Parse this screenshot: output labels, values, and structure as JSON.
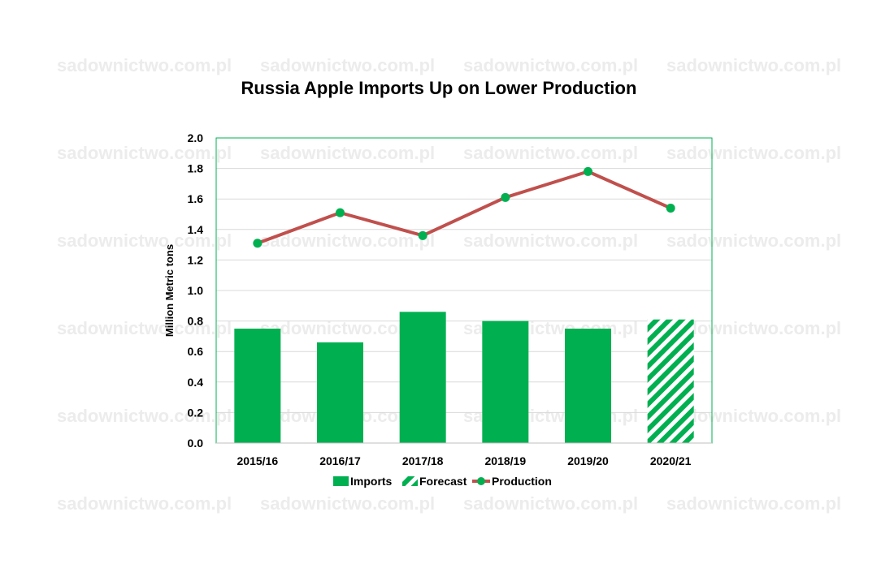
{
  "chart_data": {
    "type": "bar",
    "title": "Russia Apple Imports Up on Lower Production",
    "xlabel": "",
    "ylabel": "Million Metric tons",
    "ylim": [
      0,
      2.0
    ],
    "yticks": [
      "0.0",
      "0.2",
      "0.4",
      "0.6",
      "0.8",
      "1.0",
      "1.2",
      "1.4",
      "1.6",
      "1.8",
      "2.0"
    ],
    "grid": true,
    "legend_position": "bottom",
    "categories": [
      "2015/16",
      "2016/17",
      "2017/18",
      "2018/19",
      "2019/20",
      "2020/21"
    ],
    "series": [
      {
        "name": "Imports",
        "type": "bar",
        "values": [
          0.75,
          0.66,
          0.86,
          0.8,
          0.75,
          null
        ],
        "color": "#00b050"
      },
      {
        "name": "Forecast",
        "type": "bar-hatched",
        "values": [
          null,
          null,
          null,
          null,
          null,
          0.81
        ],
        "color": "#00b050"
      },
      {
        "name": "Production",
        "type": "line",
        "values": [
          1.31,
          1.51,
          1.36,
          1.61,
          1.78,
          1.54
        ],
        "color": "#c0504d",
        "marker_color": "#00b050"
      }
    ]
  },
  "watermark": {
    "text": "sadownictwo.com.pl"
  }
}
